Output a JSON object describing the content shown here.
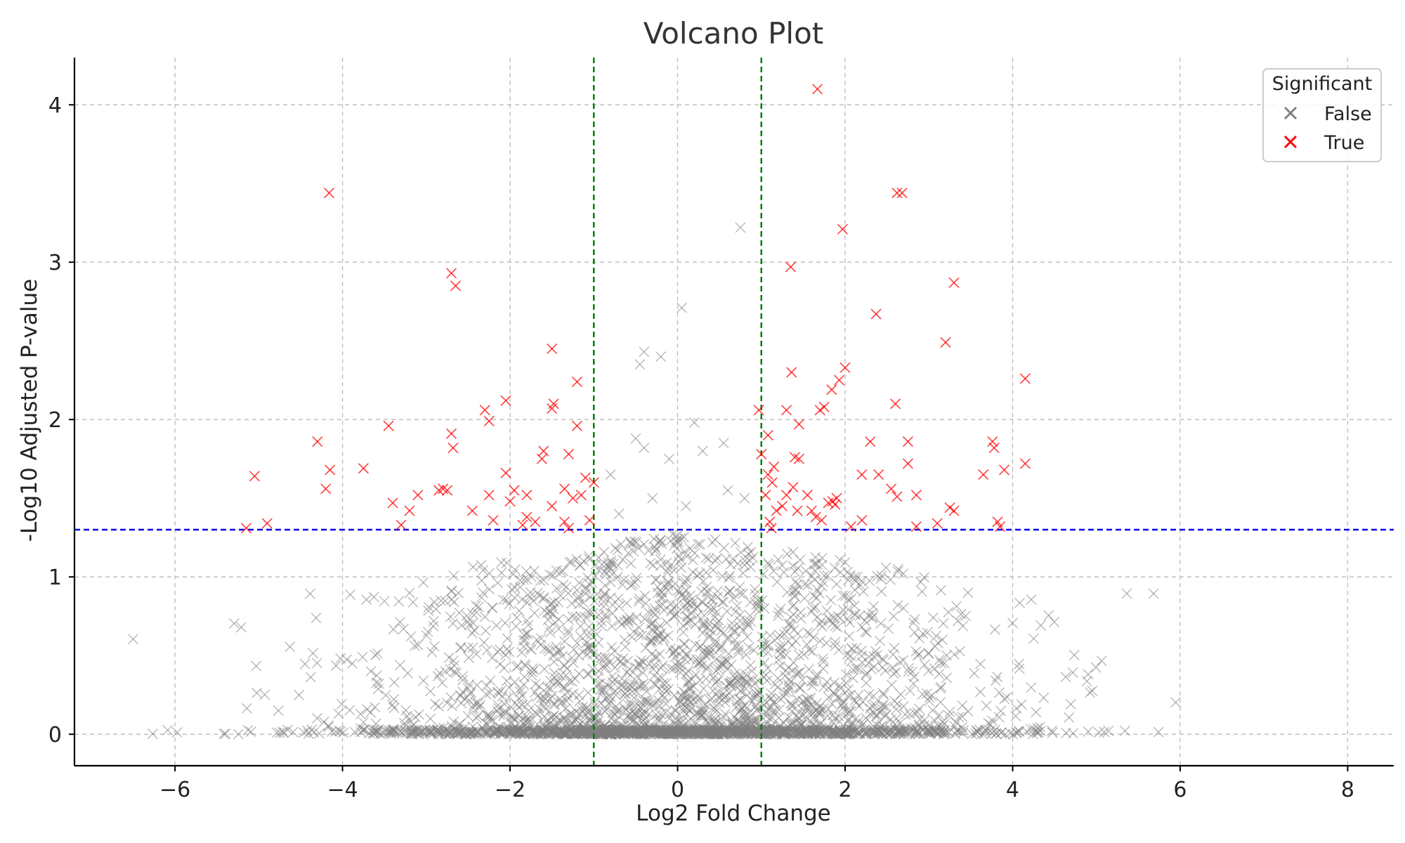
{
  "chart_data": {
    "type": "scatter",
    "title": "Volcano Plot",
    "xlabel": "Log2 Fold Change",
    "ylabel": "-Log10 Adjusted P-value",
    "xlim": [
      -7.2,
      8.55
    ],
    "ylim": [
      -0.2,
      4.3
    ],
    "x_ticks": [
      -6,
      -4,
      -2,
      0,
      2,
      4,
      6,
      8
    ],
    "x_tick_labels": [
      "−6",
      "−4",
      "−2",
      "0",
      "2",
      "4",
      "6",
      "8"
    ],
    "y_ticks": [
      0,
      1,
      2,
      3,
      4
    ],
    "y_tick_labels": [
      "0",
      "1",
      "2",
      "3",
      "4"
    ],
    "grid": true,
    "marker": "x",
    "thresholds": {
      "fold_change_lines": [
        -1,
        1
      ],
      "fold_change_color": "#008000",
      "pvalue_line": 1.3,
      "pvalue_color": "#0000ee"
    },
    "legend": {
      "title": "Significant",
      "position": "top-right",
      "entries": [
        {
          "label": "False",
          "color": "#808080"
        },
        {
          "label": "True",
          "color": "#ff0000"
        }
      ]
    },
    "series": [
      {
        "name": "True",
        "color": "#ff0000",
        "points": [
          [
            1.67,
            4.1
          ],
          [
            -4.16,
            3.44
          ],
          [
            2.62,
            3.44
          ],
          [
            2.68,
            3.44
          ],
          [
            1.97,
            3.21
          ],
          [
            1.35,
            2.97
          ],
          [
            -2.7,
            2.93
          ],
          [
            -2.65,
            2.85
          ],
          [
            3.3,
            2.87
          ],
          [
            2.37,
            2.67
          ],
          [
            3.2,
            2.49
          ],
          [
            -1.5,
            2.45
          ],
          [
            1.36,
            2.3
          ],
          [
            2.0,
            2.33
          ],
          [
            4.15,
            2.26
          ],
          [
            -1.2,
            2.24
          ],
          [
            1.93,
            2.25
          ],
          [
            1.84,
            2.19
          ],
          [
            -2.05,
            2.12
          ],
          [
            1.75,
            2.08
          ],
          [
            2.6,
            2.1
          ],
          [
            -1.48,
            2.1
          ],
          [
            -1.5,
            2.07
          ],
          [
            1.7,
            2.06
          ],
          [
            -2.3,
            2.06
          ],
          [
            0.97,
            2.06
          ],
          [
            1.3,
            2.06
          ],
          [
            -2.25,
            1.99
          ],
          [
            1.45,
            1.97
          ],
          [
            -3.45,
            1.96
          ],
          [
            -1.2,
            1.96
          ],
          [
            -2.7,
            1.91
          ],
          [
            -2.68,
            1.82
          ],
          [
            -4.3,
            1.86
          ],
          [
            2.3,
            1.86
          ],
          [
            2.75,
            1.86
          ],
          [
            3.76,
            1.86
          ],
          [
            3.78,
            1.82
          ],
          [
            1.08,
            1.9
          ],
          [
            -1.6,
            1.8
          ],
          [
            -1.62,
            1.75
          ],
          [
            -1.3,
            1.78
          ],
          [
            1.0,
            1.78
          ],
          [
            1.4,
            1.76
          ],
          [
            1.45,
            1.75
          ],
          [
            4.15,
            1.72
          ],
          [
            2.75,
            1.72
          ],
          [
            -3.75,
            1.69
          ],
          [
            -4.15,
            1.68
          ],
          [
            -2.05,
            1.66
          ],
          [
            1.15,
            1.7
          ],
          [
            1.08,
            1.65
          ],
          [
            2.2,
            1.65
          ],
          [
            2.4,
            1.65
          ],
          [
            3.65,
            1.65
          ],
          [
            3.9,
            1.68
          ],
          [
            -5.05,
            1.64
          ],
          [
            -1.1,
            1.63
          ],
          [
            -1.0,
            1.6
          ],
          [
            1.13,
            1.6
          ],
          [
            1.38,
            1.57
          ],
          [
            -4.2,
            1.56
          ],
          [
            -2.85,
            1.55
          ],
          [
            -2.75,
            1.55
          ],
          [
            -2.8,
            1.56
          ],
          [
            -3.1,
            1.52
          ],
          [
            -1.95,
            1.55
          ],
          [
            -1.35,
            1.56
          ],
          [
            -1.8,
            1.52
          ],
          [
            -2.25,
            1.52
          ],
          [
            -1.25,
            1.5
          ],
          [
            -1.15,
            1.52
          ],
          [
            1.05,
            1.52
          ],
          [
            1.3,
            1.52
          ],
          [
            1.55,
            1.52
          ],
          [
            2.55,
            1.56
          ],
          [
            2.62,
            1.51
          ],
          [
            2.85,
            1.52
          ],
          [
            1.9,
            1.5
          ],
          [
            -3.4,
            1.47
          ],
          [
            -2.0,
            1.48
          ],
          [
            -1.5,
            1.45
          ],
          [
            1.25,
            1.45
          ],
          [
            1.43,
            1.42
          ],
          [
            1.6,
            1.42
          ],
          [
            1.8,
            1.47
          ],
          [
            1.85,
            1.48
          ],
          [
            1.88,
            1.46
          ],
          [
            3.25,
            1.44
          ],
          [
            3.3,
            1.42
          ],
          [
            -3.2,
            1.42
          ],
          [
            -2.45,
            1.42
          ],
          [
            1.18,
            1.42
          ],
          [
            -1.8,
            1.38
          ],
          [
            -2.2,
            1.36
          ],
          [
            -1.7,
            1.35
          ],
          [
            -1.35,
            1.35
          ],
          [
            -1.05,
            1.36
          ],
          [
            1.1,
            1.35
          ],
          [
            1.65,
            1.38
          ],
          [
            1.72,
            1.36
          ],
          [
            2.2,
            1.36
          ],
          [
            3.82,
            1.35
          ],
          [
            -4.9,
            1.34
          ],
          [
            -1.85,
            1.33
          ],
          [
            -1.3,
            1.31
          ],
          [
            -3.3,
            1.33
          ],
          [
            -5.15,
            1.31
          ],
          [
            1.12,
            1.31
          ],
          [
            2.07,
            1.32
          ],
          [
            2.85,
            1.32
          ],
          [
            3.1,
            1.34
          ],
          [
            3.85,
            1.32
          ]
        ]
      }
    ]
  }
}
